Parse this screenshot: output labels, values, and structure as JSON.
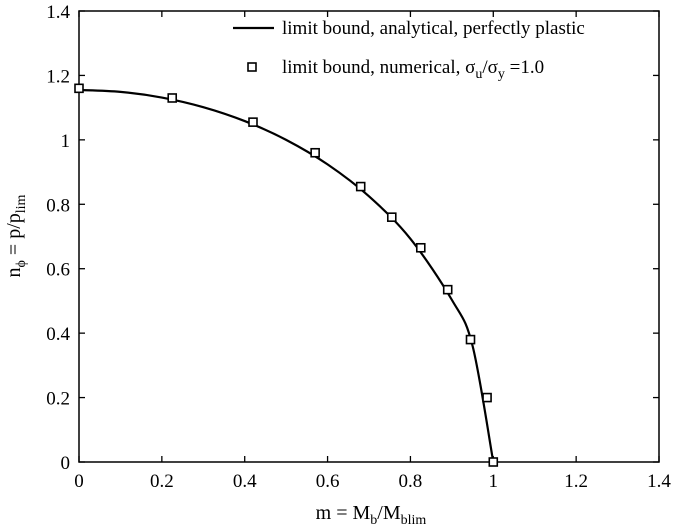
{
  "chart_data": {
    "type": "line",
    "xlim": [
      0,
      1.4
    ],
    "ylim": [
      0,
      1.4
    ],
    "x_ticks": [
      "0",
      "0.2",
      "0.4",
      "0.6",
      "0.8",
      "1",
      "1.2",
      "1.4"
    ],
    "y_ticks": [
      "0",
      "0.2",
      "0.4",
      "0.6",
      "0.8",
      "1",
      "1.2",
      "1.4"
    ],
    "xlabel": {
      "main": "m = M",
      "sub1": "b",
      "mid": "/M",
      "sub2": "blim"
    },
    "ylabel": {
      "main": "n",
      "sub1": "ϕ",
      "mid": " = p/p",
      "sub2": "lim"
    },
    "grid": false,
    "legend_position": "top-right",
    "series": [
      {
        "name": "limit bound, analytical, perfectly plastic",
        "style": "line",
        "color": "#000000",
        "x": [
          0,
          0.1,
          0.2,
          0.3,
          0.4,
          0.5,
          0.6,
          0.7,
          0.8,
          0.9,
          0.95,
          1.0
        ],
        "y": [
          1.1547,
          1.1489,
          1.1314,
          1.1015,
          1.0583,
          1.0,
          0.9238,
          0.8246,
          0.6928,
          0.5033,
          0.3606,
          0.0
        ]
      },
      {
        "name_parts": {
          "prefix": "limit bound, numerical, ",
          "sigma1": "σ",
          "sub1": "u",
          "slash": "/",
          "sigma2": "σ",
          "sub2": "y",
          "suffix": " =1.0"
        },
        "style": "markers",
        "marker": "square",
        "color": "#000000",
        "x": [
          0.0,
          0.225,
          0.42,
          0.57,
          0.68,
          0.755,
          0.825,
          0.89,
          0.945,
          0.985,
          1.0
        ],
        "y": [
          1.16,
          1.13,
          1.055,
          0.96,
          0.855,
          0.76,
          0.665,
          0.535,
          0.38,
          0.2,
          0.0
        ]
      }
    ]
  }
}
